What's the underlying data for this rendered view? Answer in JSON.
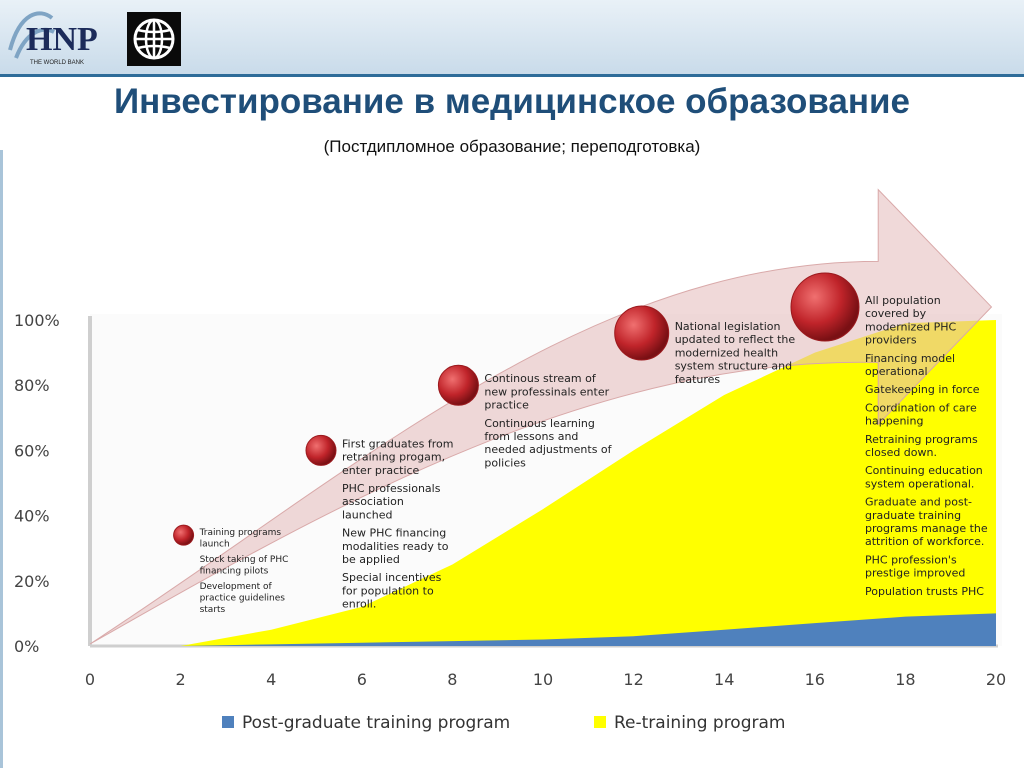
{
  "header": {
    "title": "Инвестирование в медицинское образование",
    "subtitle": "(Постдипломное образование; переподготовка)",
    "logo_text": "HNP",
    "logo_subtext": "THE WORLD BANK"
  },
  "colors": {
    "header_bg": "#c9dbea",
    "title": "#1f4e79",
    "arrow": "#e8c4c4",
    "milestone": "#c0242a",
    "post_graduate": "#4f81bd",
    "re_training": "#ffff00"
  },
  "chart_data": {
    "type": "area",
    "x_ticks": [
      "0",
      "2",
      "4",
      "6",
      "8",
      "10",
      "12",
      "14",
      "16",
      "18",
      "20"
    ],
    "y_ticks": [
      "0%",
      "20%",
      "40%",
      "60%",
      "80%",
      "100%"
    ],
    "xlim": [
      0,
      20
    ],
    "ylim": [
      0,
      100
    ],
    "series": [
      {
        "name": "Re-training program",
        "color": "#ffff00",
        "x": [
          0,
          2,
          4,
          6,
          8,
          10,
          12,
          14,
          16,
          18,
          20
        ],
        "values": [
          0,
          0,
          5,
          12,
          25,
          42,
          60,
          77,
          90,
          99,
          100
        ]
      },
      {
        "name": "Post-graduate training program",
        "color": "#4f81bd",
        "x": [
          0,
          2,
          4,
          6,
          8,
          10,
          12,
          14,
          16,
          18,
          20
        ],
        "values": [
          0,
          0,
          0.5,
          1,
          1.5,
          2,
          3,
          5,
          7,
          9,
          10
        ]
      }
    ],
    "milestones": [
      {
        "x": 2,
        "y": 34,
        "r": 10,
        "lines": [
          [
            "Training programs",
            "launch"
          ],
          [
            "Stock taking of PHC",
            "financing pilots"
          ],
          [
            "Development of",
            "practice guidelines",
            "starts"
          ]
        ],
        "small": true
      },
      {
        "x": 5,
        "y": 60,
        "r": 15,
        "lines": [
          [
            "First graduates from",
            "retraining progam,",
            "enter practice"
          ],
          [
            "PHC professionals",
            "association",
            "launched"
          ],
          [
            "New PHC financing",
            "modalities ready to",
            "be applied"
          ],
          [
            "Special incentives",
            "for population to",
            "enroll."
          ]
        ],
        "small": false
      },
      {
        "x": 8,
        "y": 80,
        "r": 20,
        "lines": [
          [
            "Continous stream of",
            "new professinals  enter",
            "practice"
          ],
          [
            "Continuous learning",
            "from lessons and",
            "needed adjustments of",
            "policies"
          ]
        ],
        "small": false
      },
      {
        "x": 12,
        "y": 96,
        "r": 27,
        "lines": [
          [
            "National legislation",
            "updated to reflect the",
            "modernized health",
            "system structure and",
            "features"
          ]
        ],
        "small": false
      },
      {
        "x": 16,
        "y": 104,
        "r": 34,
        "lines": [
          [
            "All population",
            "covered  by",
            "modernized PHC",
            "providers"
          ],
          [
            "Financing model",
            "operational"
          ],
          [
            "Gatekeeping in force"
          ],
          [
            "Coordination of care",
            "happening"
          ],
          [
            "Retraining programs",
            "closed down."
          ],
          [
            "Continuing education",
            "system operational."
          ],
          [
            "Graduate and post-",
            "graduate training",
            "programs manage the",
            "attrition of workforce."
          ],
          [
            "PHC profession's",
            "prestige improved"
          ],
          [
            "Population trusts PHC"
          ]
        ],
        "small": false
      }
    ],
    "legend": [
      {
        "label": "Post-graduate training program",
        "color": "#4f81bd"
      },
      {
        "label": "Re-training program",
        "color": "#ffff00"
      }
    ]
  }
}
